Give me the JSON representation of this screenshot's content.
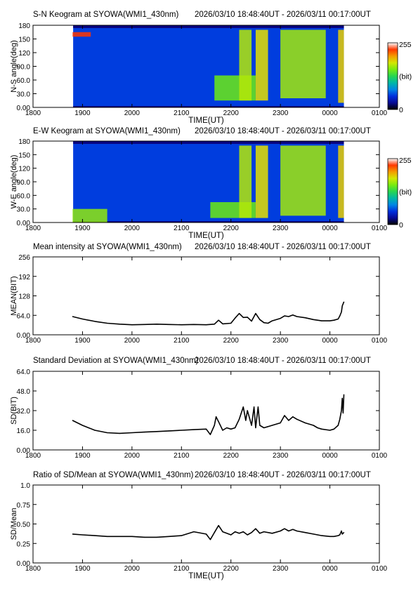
{
  "panels": [
    {
      "kind": "keogram",
      "title": "S-N Keogram at SYOWA(WMI1_430nm)",
      "time_range": "2026/03/10 18:48:40UT - 2026/03/11 00:17:00UT",
      "ylabel": "N-S angle(deg)",
      "xlabel": "TIME(UT)",
      "yticks": [
        "0.00",
        "30.0",
        "60.0",
        "90.0",
        "120",
        "150",
        "180"
      ],
      "xticks": [
        "1800",
        "1900",
        "2000",
        "2100",
        "2200",
        "2300",
        "0000",
        "0100"
      ],
      "colorbar": {
        "max": "255",
        "unit": "(bit)",
        "min": "0"
      }
    },
    {
      "kind": "keogram",
      "title": "E-W Keogram at SYOWA(WMI1_430nm)",
      "time_range": "2026/03/10 18:48:40UT - 2026/03/11 00:17:00UT",
      "ylabel": "W-E angle(deg)",
      "xlabel": "TIME(UT)",
      "yticks": [
        "0.00",
        "30.0",
        "60.0",
        "90.0",
        "120",
        "150",
        "180"
      ],
      "xticks": [
        "1800",
        "1900",
        "2000",
        "2100",
        "2200",
        "2300",
        "0000",
        "0100"
      ],
      "colorbar": {
        "max": "255",
        "unit": "(bit)",
        "min": "0"
      }
    },
    {
      "kind": "line",
      "title": "Mean intensity at SYOWA(WMI1_430nm)",
      "time_range": "2026/03/10 18:48:40UT - 2026/03/11 00:17:00UT",
      "ylabel": "MEAN(BIT)",
      "xlabel": "",
      "yticks": [
        "0.00",
        "64.0",
        "128",
        "192",
        "256"
      ],
      "xticks": [
        "1800",
        "1900",
        "2000",
        "2100",
        "2200",
        "2300",
        "0000",
        "0100"
      ]
    },
    {
      "kind": "line",
      "title": "Standard Deviation at SYOWA(WMI1_430nm)",
      "time_range": "2026/03/10 18:48:40UT - 2026/03/11 00:17:00UT",
      "ylabel": "SD(BIT)",
      "xlabel": "",
      "yticks": [
        "0.00",
        "16.0",
        "32.0",
        "48.0",
        "64.0"
      ],
      "xticks": [
        "1800",
        "1900",
        "2000",
        "2100",
        "2200",
        "2300",
        "0000",
        "0100"
      ]
    },
    {
      "kind": "line",
      "title": "Ratio of SD/Mean at SYOWA(WMI1_430nm)",
      "time_range": "2026/03/10 18:48:40UT - 2026/03/11 00:17:00UT",
      "ylabel": "SD/Mean",
      "xlabel": "TIME(UT)",
      "yticks": [
        "0.00",
        "0.25",
        "0.50",
        "0.75",
        "1.0"
      ],
      "xticks": [
        "1800",
        "1900",
        "2000",
        "2100",
        "2200",
        "2300",
        "0000",
        "0100"
      ]
    }
  ],
  "chart_data": [
    {
      "type": "heatmap",
      "title": "S-N Keogram at SYOWA(WMI1_430nm)",
      "xlabel": "TIME(UT)",
      "ylabel": "N-S angle(deg)",
      "xlim": [
        "2026/03/10 18:00",
        "2026/03/11 01:00"
      ],
      "ylim": [
        0,
        180
      ],
      "data_range": [
        "2026/03/10 18:48:40",
        "2026/03/11 00:17:00"
      ],
      "colorscale": "rainbow",
      "zlim": [
        0,
        255
      ],
      "background_level": 55,
      "features": [
        {
          "time": "21:40-22:30",
          "angle": [
            15,
            70
          ],
          "level": 150
        },
        {
          "time": "22:10-22:25",
          "angle": [
            15,
            170
          ],
          "level": 170
        },
        {
          "time": "22:30-22:45",
          "angle": [
            15,
            170
          ],
          "level": 185
        },
        {
          "time": "23:00-23:55",
          "angle": [
            20,
            170
          ],
          "level": 165
        },
        {
          "time": "00:10-00:17",
          "angle": [
            10,
            170
          ],
          "level": 190
        },
        {
          "time": "18:48-19:10",
          "angle": [
            155,
            165
          ],
          "level": 230
        }
      ]
    },
    {
      "type": "heatmap",
      "title": "E-W Keogram at SYOWA(WMI1_430nm)",
      "xlabel": "TIME(UT)",
      "ylabel": "W-E angle(deg)",
      "xlim": [
        "2026/03/10 18:00",
        "2026/03/11 01:00"
      ],
      "ylim": [
        0,
        180
      ],
      "data_range": [
        "2026/03/10 18:48:40",
        "2026/03/11 00:17:00"
      ],
      "colorscale": "rainbow",
      "zlim": [
        0,
        255
      ],
      "background_level": 55,
      "features": [
        {
          "time": "18:48-19:30",
          "angle": [
            0,
            30
          ],
          "level": 160
        },
        {
          "time": "21:35-22:30",
          "angle": [
            10,
            45
          ],
          "level": 150
        },
        {
          "time": "22:10-22:25",
          "angle": [
            10,
            170
          ],
          "level": 170
        },
        {
          "time": "22:30-22:45",
          "angle": [
            10,
            170
          ],
          "level": 185
        },
        {
          "time": "23:00-23:55",
          "angle": [
            15,
            170
          ],
          "level": 165
        },
        {
          "time": "00:10-00:17",
          "angle": [
            10,
            170
          ],
          "level": 190
        }
      ]
    },
    {
      "type": "line",
      "title": "Mean intensity at SYOWA(WMI1_430nm)",
      "ylabel": "MEAN(BIT)",
      "xlim": [
        "18:00",
        "01:00"
      ],
      "ylim": [
        0,
        256
      ],
      "x": [
        "18:48",
        "19:00",
        "19:15",
        "19:30",
        "19:45",
        "20:00",
        "20:15",
        "20:30",
        "20:45",
        "21:00",
        "21:15",
        "21:30",
        "21:40",
        "21:45",
        "21:50",
        "22:00",
        "22:05",
        "22:10",
        "22:15",
        "22:20",
        "22:25",
        "22:30",
        "22:35",
        "22:40",
        "22:45",
        "22:50",
        "23:00",
        "23:05",
        "23:10",
        "23:15",
        "23:20",
        "23:30",
        "23:40",
        "23:45",
        "23:50",
        "00:00",
        "00:05",
        "00:10",
        "00:12",
        "00:14",
        "00:15",
        "00:17"
      ],
      "values": [
        60,
        52,
        44,
        38,
        35,
        33,
        34,
        35,
        34,
        33,
        34,
        33,
        35,
        48,
        36,
        38,
        55,
        70,
        57,
        58,
        45,
        70,
        50,
        40,
        38,
        46,
        54,
        62,
        60,
        65,
        60,
        56,
        50,
        48,
        46,
        46,
        48,
        52,
        62,
        75,
        95,
        108
      ]
    },
    {
      "type": "line",
      "title": "Standard Deviation at SYOWA(WMI1_430nm)",
      "ylabel": "SD(BIT)",
      "xlim": [
        "18:00",
        "01:00"
      ],
      "ylim": [
        0,
        64
      ],
      "x": [
        "18:48",
        "19:00",
        "19:15",
        "19:30",
        "19:45",
        "20:00",
        "20:15",
        "20:30",
        "20:45",
        "21:00",
        "21:15",
        "21:30",
        "21:35",
        "21:40",
        "21:42",
        "21:45",
        "21:50",
        "21:55",
        "22:00",
        "22:05",
        "22:10",
        "22:15",
        "22:18",
        "22:20",
        "22:25",
        "22:28",
        "22:30",
        "22:33",
        "22:35",
        "22:40",
        "22:50",
        "23:00",
        "23:05",
        "23:10",
        "23:15",
        "23:20",
        "23:30",
        "23:40",
        "23:45",
        "23:50",
        "00:00",
        "00:05",
        "00:10",
        "00:12",
        "00:14",
        "00:15",
        "00:16",
        "00:17"
      ],
      "values": [
        24,
        20,
        16,
        14,
        13.5,
        14,
        14.5,
        15,
        15.5,
        16,
        16.5,
        17,
        12.5,
        20,
        27,
        23,
        16,
        18,
        17,
        18,
        25,
        35,
        24,
        32,
        20,
        35,
        18,
        35,
        20,
        18,
        20,
        22,
        28,
        24,
        27,
        25,
        22,
        20,
        18,
        17,
        16,
        17,
        20,
        25,
        32,
        42,
        30,
        45
      ]
    },
    {
      "type": "line",
      "title": "Ratio of SD/Mean at SYOWA(WMI1_430nm)",
      "ylabel": "SD/Mean",
      "xlabel": "TIME(UT)",
      "xlim": [
        "18:00",
        "01:00"
      ],
      "ylim": [
        0,
        1.0
      ],
      "x": [
        "18:48",
        "19:00",
        "19:15",
        "19:30",
        "19:45",
        "20:00",
        "20:15",
        "20:30",
        "20:45",
        "21:00",
        "21:15",
        "21:30",
        "21:35",
        "21:40",
        "21:45",
        "21:50",
        "21:55",
        "22:00",
        "22:05",
        "22:10",
        "22:15",
        "22:20",
        "22:25",
        "22:30",
        "22:35",
        "22:40",
        "22:50",
        "23:00",
        "23:05",
        "23:10",
        "23:15",
        "23:20",
        "23:30",
        "23:40",
        "23:45",
        "23:50",
        "00:00",
        "00:05",
        "00:10",
        "00:12",
        "00:14",
        "00:15",
        "00:17"
      ],
      "values": [
        0.37,
        0.36,
        0.35,
        0.34,
        0.34,
        0.34,
        0.33,
        0.33,
        0.34,
        0.35,
        0.4,
        0.37,
        0.3,
        0.39,
        0.48,
        0.4,
        0.38,
        0.36,
        0.4,
        0.38,
        0.4,
        0.36,
        0.39,
        0.44,
        0.38,
        0.4,
        0.38,
        0.41,
        0.44,
        0.41,
        0.43,
        0.41,
        0.39,
        0.37,
        0.36,
        0.35,
        0.34,
        0.34,
        0.35,
        0.36,
        0.41,
        0.37,
        0.39
      ]
    }
  ]
}
